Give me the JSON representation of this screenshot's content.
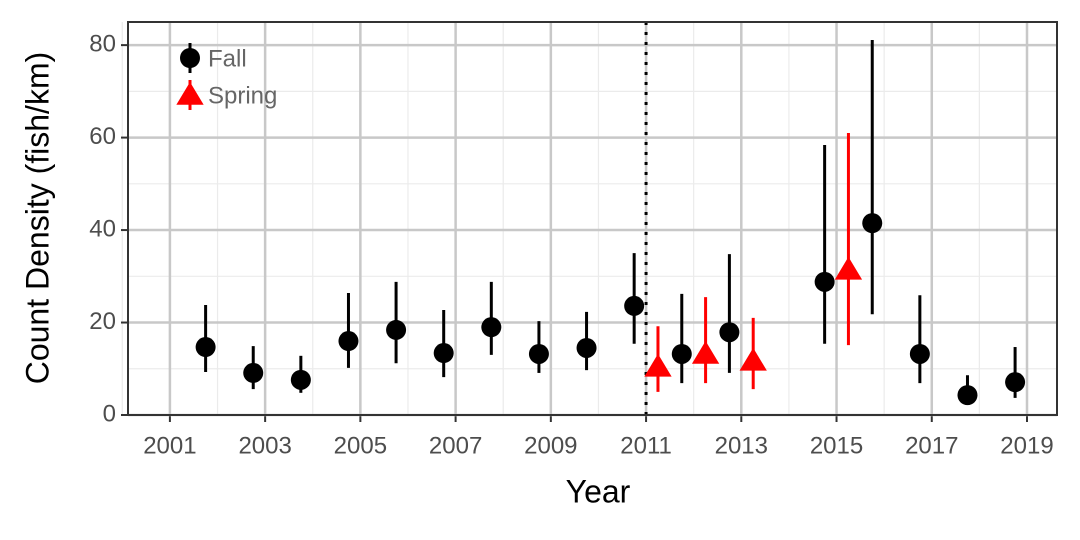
{
  "chart_data": {
    "type": "scatter",
    "x_label": "Year",
    "y_label": "Count Density (fish/km)",
    "xlim": [
      2000.12,
      2019.63
    ],
    "ylim": [
      0,
      85
    ],
    "xticks": [
      2001,
      2003,
      2005,
      2007,
      2009,
      2011,
      2013,
      2015,
      2017,
      2019
    ],
    "yticks": [
      0,
      20,
      40,
      60,
      80
    ],
    "minor_xticks": [
      2000,
      2002,
      2004,
      2006,
      2008,
      2010,
      2012,
      2014,
      2016,
      2018
    ],
    "minor_yticks": [
      10,
      30,
      50,
      70
    ],
    "grid": true,
    "vline": 2011,
    "legend": "top-left",
    "series": [
      {
        "name": "Fall",
        "color": "#000000",
        "marker": "circle",
        "x": [
          2001.75,
          2002.75,
          2003.75,
          2004.75,
          2005.75,
          2006.75,
          2007.75,
          2008.75,
          2009.75,
          2010.75,
          2011.75,
          2012.75,
          2014.75,
          2015.75,
          2016.75,
          2017.75,
          2018.75
        ],
        "values": [
          14.7,
          9.1,
          7.6,
          16.0,
          18.4,
          13.4,
          19.0,
          13.2,
          14.5,
          23.6,
          13.2,
          17.9,
          28.8,
          41.5,
          13.2,
          4.3,
          7.1
        ],
        "lower": [
          9.3,
          5.6,
          4.8,
          10.2,
          11.2,
          8.2,
          13.0,
          9.1,
          9.7,
          15.4,
          6.9,
          9.1,
          15.4,
          21.8,
          6.9,
          2.6,
          3.7
        ],
        "upper": [
          23.8,
          14.9,
          12.8,
          26.4,
          28.8,
          22.7,
          28.8,
          20.3,
          22.3,
          35.0,
          26.2,
          34.8,
          58.4,
          81.1,
          25.9,
          8.6,
          14.7
        ]
      },
      {
        "name": "Spring",
        "color": "#ff0000",
        "marker": "triangle",
        "x": [
          2011.25,
          2012.25,
          2013.25,
          2015.25
        ],
        "values": [
          10.4,
          13.2,
          11.7,
          31.4
        ],
        "lower": [
          5.0,
          6.9,
          5.6,
          15.1
        ],
        "upper": [
          19.2,
          25.5,
          21.0,
          61.0
        ]
      }
    ]
  }
}
